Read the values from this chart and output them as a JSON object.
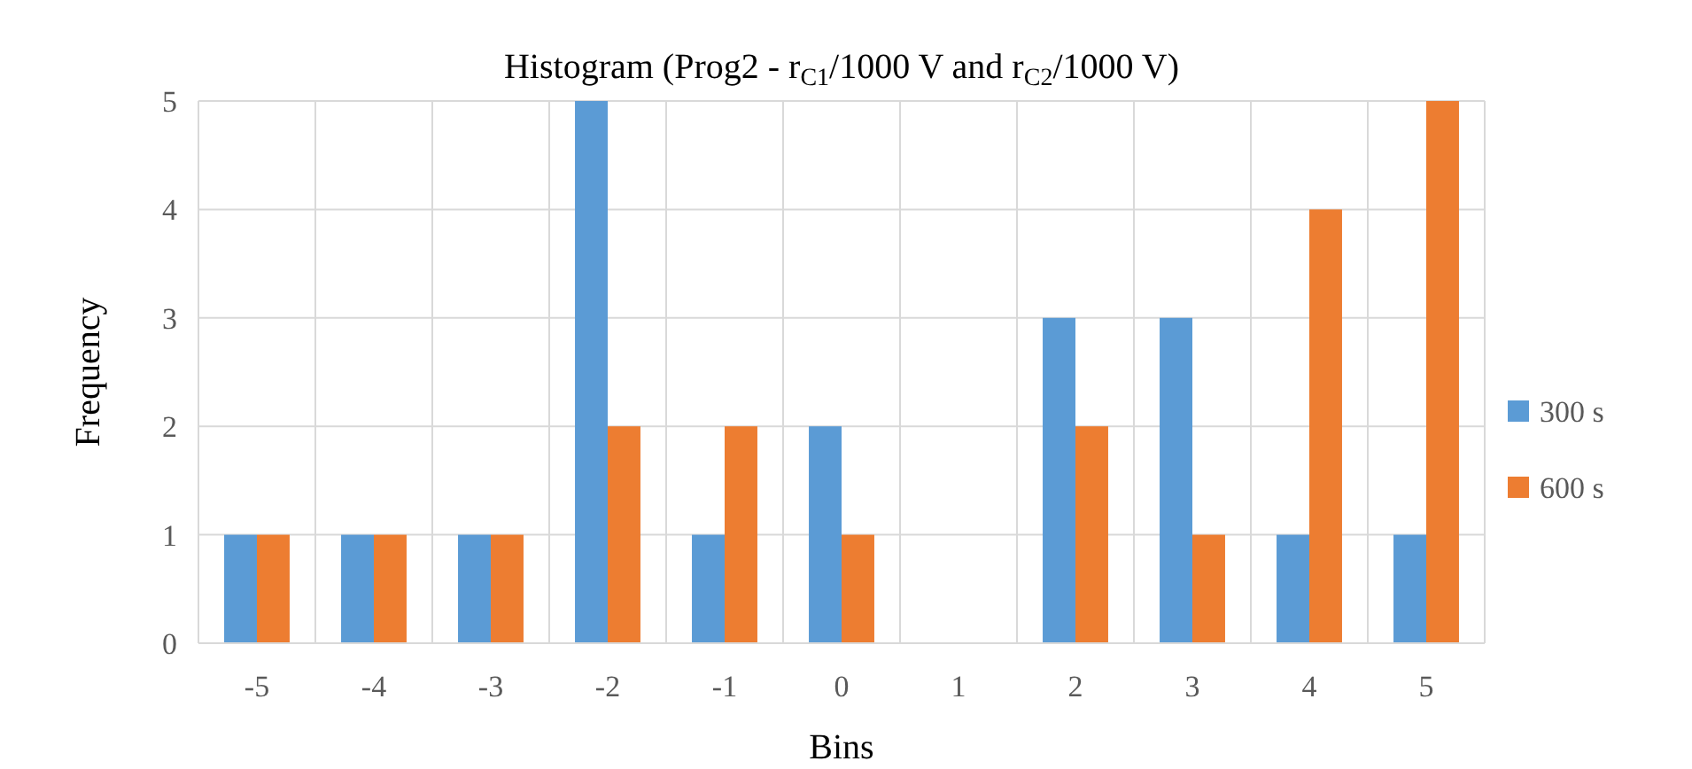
{
  "chart_data": {
    "type": "bar",
    "title": "Histogram (Prog2 - r$_{C1}$/1000 V and r$_{C2}$/1000 V)",
    "xlabel": "Bins",
    "ylabel": "Frequency",
    "categories": [
      "-5",
      "-4",
      "-3",
      "-2",
      "-1",
      "0",
      "1",
      "2",
      "3",
      "4",
      "5"
    ],
    "series": [
      {
        "name": "300 s",
        "color": "#5b9bd5",
        "values": [
          1,
          1,
          1,
          5,
          1,
          2,
          0,
          3,
          3,
          1,
          1
        ]
      },
      {
        "name": "600 s",
        "color": "#ed7d31",
        "values": [
          1,
          1,
          1,
          2,
          2,
          1,
          0,
          2,
          1,
          4,
          5
        ]
      }
    ],
    "ylim": [
      0,
      5
    ],
    "yticks": [
      0,
      1,
      2,
      3,
      4,
      5
    ],
    "grid": true,
    "legend": "right"
  }
}
